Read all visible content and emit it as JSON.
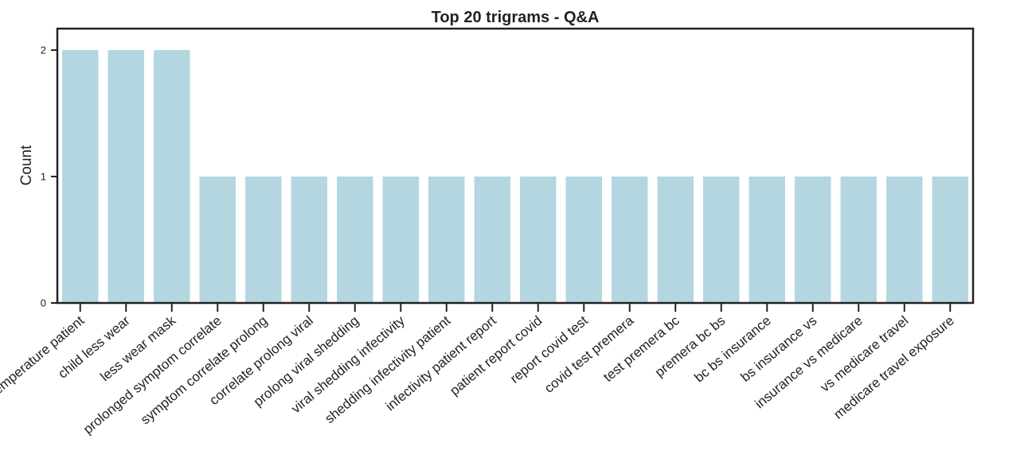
{
  "chart_data": {
    "type": "bar",
    "title": "Top 20 trigrams - Q&A",
    "xlabel": "",
    "ylabel": "Count",
    "ylim": [
      0,
      2.17
    ],
    "yticks": [
      0,
      1,
      2
    ],
    "grid": false,
    "legend": "none",
    "bar_color": "#b4d6e0",
    "frame_color": "#222222",
    "categories": [
      "take temperature patient",
      "child less wear",
      "less wear mask",
      "prolonged symptom correlate",
      "symptom correlate prolong",
      "correlate prolong viral",
      "prolong viral shedding",
      "viral shedding infectivity",
      "shedding infectivity patient",
      "infectivity patient report",
      "patient report covid",
      "report covid test",
      "covid test premera",
      "test premera bc",
      "premera bc bs",
      "bc bs insurance",
      "bs insurance vs",
      "insurance vs medicare",
      "vs medicare travel",
      "medicare travel exposure"
    ],
    "values": [
      2,
      2,
      2,
      1,
      1,
      1,
      1,
      1,
      1,
      1,
      1,
      1,
      1,
      1,
      1,
      1,
      1,
      1,
      1,
      1
    ]
  }
}
